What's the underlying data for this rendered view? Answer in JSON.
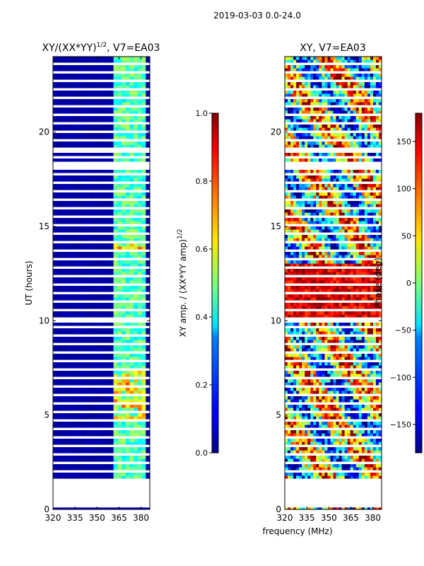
{
  "suptitle": "2019-03-03 0.0-24.0",
  "shared_xlabel": "frequency (MHz)",
  "chart_data": [
    {
      "type": "heatmap",
      "title": "XY/(XX*YY)",
      "title_sup": "1/2",
      "title_suffix": ", V7=EA03",
      "ylabel": "UT (hours)",
      "xlim": [
        320,
        386
      ],
      "ylim": [
        0,
        24
      ],
      "xticks": [
        320,
        335,
        350,
        365,
        380
      ],
      "yticks": [
        0,
        5,
        10,
        15,
        20
      ],
      "colorscale": "jet",
      "colorbar": {
        "label": "XY amp. / (XX*YY amp)",
        "label_sup": "1/2",
        "range": [
          0.0,
          1.0
        ],
        "ticks": [
          "0.0",
          "0.2",
          "0.4",
          "0.6",
          "0.8",
          "1.0"
        ]
      }
    },
    {
      "type": "heatmap",
      "title": "XY, V7=EA03",
      "ylabel": "",
      "xlim": [
        320,
        386
      ],
      "ylim": [
        0,
        24
      ],
      "xticks": [
        320,
        335,
        350,
        365,
        380
      ],
      "yticks": [
        0,
        5,
        10,
        15,
        20
      ],
      "colorscale": "jet",
      "colorbar": {
        "label": "Phase (deg)",
        "range": [
          -180,
          180
        ],
        "ticks": [
          "−150",
          "−100",
          "−50",
          "0",
          "50",
          "100",
          "150"
        ]
      }
    }
  ]
}
